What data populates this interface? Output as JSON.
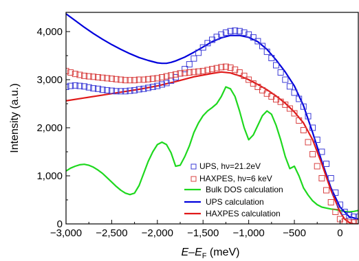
{
  "chart_data": {
    "type": "scatter",
    "xlabel": {
      "main": "E",
      "sep": "–",
      "sym": "E",
      "sub": "F",
      "unit": " (meV)"
    },
    "ylabel": "Intensity (a.u.)",
    "xlim": [
      -3000,
      200
    ],
    "ylim": [
      0,
      4400
    ],
    "x_ticks": [
      -3000,
      -2500,
      -2000,
      -1500,
      -1000,
      -500,
      0
    ],
    "x_tick_labels": [
      "−3,000",
      "−2,500",
      "−2,000",
      "−1,500",
      "−1,000",
      "−500",
      "0"
    ],
    "y_ticks": [
      0,
      1000,
      2000,
      3000,
      4000
    ],
    "y_tick_labels": [
      "0",
      "1,000",
      "2,000",
      "3,000",
      "4,000"
    ],
    "legend_position": "bottom-right",
    "series": [
      {
        "name": "UPS, hν=21.2eV",
        "kind": "markers",
        "marker": "square",
        "color": "#3a3ad6",
        "x": [
          -3000,
          -2950,
          -2900,
          -2850,
          -2800,
          -2750,
          -2700,
          -2650,
          -2600,
          -2550,
          -2500,
          -2450,
          -2400,
          -2350,
          -2300,
          -2250,
          -2200,
          -2150,
          -2100,
          -2050,
          -2000,
          -1950,
          -1900,
          -1850,
          -1800,
          -1750,
          -1700,
          -1650,
          -1600,
          -1550,
          -1500,
          -1450,
          -1400,
          -1350,
          -1300,
          -1250,
          -1200,
          -1150,
          -1100,
          -1050,
          -1000,
          -950,
          -900,
          -850,
          -800,
          -750,
          -700,
          -650,
          -600,
          -550,
          -500,
          -450,
          -400,
          -350,
          -300,
          -250,
          -200,
          -150,
          -100,
          -50,
          0,
          50,
          100,
          150,
          200
        ],
        "y": [
          2850,
          2870,
          2880,
          2870,
          2860,
          2840,
          2820,
          2810,
          2790,
          2780,
          2770,
          2760,
          2760,
          2760,
          2770,
          2780,
          2800,
          2810,
          2830,
          2850,
          2870,
          2900,
          2930,
          2980,
          3050,
          3130,
          3220,
          3320,
          3440,
          3560,
          3670,
          3760,
          3830,
          3890,
          3940,
          3980,
          4010,
          4020,
          4010,
          3980,
          3940,
          3880,
          3800,
          3700,
          3580,
          3450,
          3300,
          3150,
          3000,
          2860,
          2730,
          2600,
          2440,
          2240,
          2000,
          1750,
          1500,
          1250,
          950,
          650,
          400,
          250,
          180,
          150,
          150
        ]
      },
      {
        "name": "HAXPES, hν=6 keV",
        "kind": "markers",
        "marker": "square",
        "color": "#d84040",
        "x": [
          -3000,
          -2950,
          -2900,
          -2850,
          -2800,
          -2750,
          -2700,
          -2650,
          -2600,
          -2550,
          -2500,
          -2450,
          -2400,
          -2350,
          -2300,
          -2250,
          -2200,
          -2150,
          -2100,
          -2050,
          -2000,
          -1950,
          -1900,
          -1850,
          -1800,
          -1750,
          -1700,
          -1650,
          -1600,
          -1550,
          -1500,
          -1450,
          -1400,
          -1350,
          -1300,
          -1250,
          -1200,
          -1150,
          -1100,
          -1050,
          -1000,
          -950,
          -900,
          -850,
          -800,
          -750,
          -700,
          -650,
          -600,
          -550,
          -500,
          -450,
          -400,
          -350,
          -300,
          -250,
          -200,
          -150,
          -100,
          -50,
          0,
          50,
          100,
          150,
          200
        ],
        "y": [
          3180,
          3150,
          3120,
          3100,
          3080,
          3070,
          3060,
          3050,
          3040,
          3030,
          3020,
          3010,
          3000,
          2990,
          2990,
          2990,
          3000,
          3000,
          3010,
          3020,
          3030,
          3050,
          3070,
          3090,
          3110,
          3130,
          3140,
          3150,
          3160,
          3170,
          3180,
          3200,
          3220,
          3240,
          3260,
          3270,
          3250,
          3210,
          3150,
          3080,
          3000,
          2920,
          2850,
          2780,
          2710,
          2650,
          2590,
          2540,
          2480,
          2400,
          2300,
          2150,
          1950,
          1700,
          1450,
          1200,
          950,
          700,
          450,
          250,
          100,
          50,
          30,
          30,
          30
        ]
      },
      {
        "name": "Bulk DOS calculation",
        "kind": "line",
        "color": "#1ed81e",
        "x": [
          -3000,
          -2950,
          -2900,
          -2850,
          -2800,
          -2750,
          -2700,
          -2650,
          -2600,
          -2550,
          -2500,
          -2450,
          -2400,
          -2350,
          -2300,
          -2250,
          -2200,
          -2150,
          -2100,
          -2050,
          -2000,
          -1950,
          -1900,
          -1850,
          -1800,
          -1750,
          -1700,
          -1650,
          -1600,
          -1550,
          -1500,
          -1450,
          -1400,
          -1350,
          -1300,
          -1250,
          -1200,
          -1150,
          -1100,
          -1050,
          -1000,
          -950,
          -900,
          -850,
          -800,
          -750,
          -700,
          -650,
          -600,
          -550,
          -500,
          -450,
          -400,
          -350,
          -300,
          -250,
          -200,
          -150,
          -100,
          -50,
          0,
          50,
          100,
          150,
          200
        ],
        "y": [
          1100,
          1160,
          1200,
          1230,
          1240,
          1220,
          1180,
          1120,
          1050,
          960,
          870,
          780,
          700,
          640,
          610,
          640,
          800,
          1050,
          1300,
          1500,
          1650,
          1700,
          1650,
          1480,
          1200,
          1220,
          1400,
          1620,
          1900,
          2100,
          2250,
          2350,
          2420,
          2500,
          2650,
          2850,
          2810,
          2650,
          2350,
          2000,
          1750,
          1850,
          2050,
          2250,
          2350,
          2280,
          2050,
          1750,
          1400,
          1150,
          1200,
          1000,
          750,
          600,
          480,
          400,
          350,
          330,
          310,
          300,
          280,
          260,
          250,
          260,
          280
        ]
      },
      {
        "name": "UPS calculation",
        "kind": "line",
        "color": "#0000dc",
        "x": [
          -3000,
          -2900,
          -2800,
          -2700,
          -2600,
          -2500,
          -2400,
          -2300,
          -2200,
          -2100,
          -2000,
          -1950,
          -1900,
          -1850,
          -1800,
          -1700,
          -1600,
          -1500,
          -1400,
          -1300,
          -1200,
          -1100,
          -1000,
          -900,
          -800,
          -700,
          -600,
          -500,
          -400,
          -300,
          -200,
          -100,
          0,
          100,
          200
        ],
        "y": [
          4370,
          4230,
          4090,
          3960,
          3840,
          3730,
          3630,
          3540,
          3460,
          3400,
          3350,
          3340,
          3340,
          3360,
          3390,
          3470,
          3570,
          3680,
          3790,
          3870,
          3920,
          3920,
          3880,
          3790,
          3630,
          3410,
          3160,
          2870,
          2460,
          1900,
          1300,
          750,
          350,
          150,
          100
        ]
      },
      {
        "name": "HAXPES calculation",
        "kind": "line",
        "color": "#e01818",
        "x": [
          -3000,
          -2800,
          -2600,
          -2400,
          -2200,
          -2000,
          -1800,
          -1600,
          -1400,
          -1300,
          -1200,
          -1100,
          -1000,
          -900,
          -800,
          -700,
          -600,
          -500,
          -400,
          -300,
          -200,
          -100,
          0,
          50,
          100,
          150,
          200
        ],
        "y": [
          2560,
          2620,
          2680,
          2740,
          2800,
          2870,
          2960,
          3060,
          3130,
          3160,
          3140,
          3080,
          3000,
          2900,
          2790,
          2660,
          2510,
          2330,
          2100,
          1750,
          1250,
          700,
          250,
          100,
          30,
          0,
          0
        ]
      }
    ]
  }
}
